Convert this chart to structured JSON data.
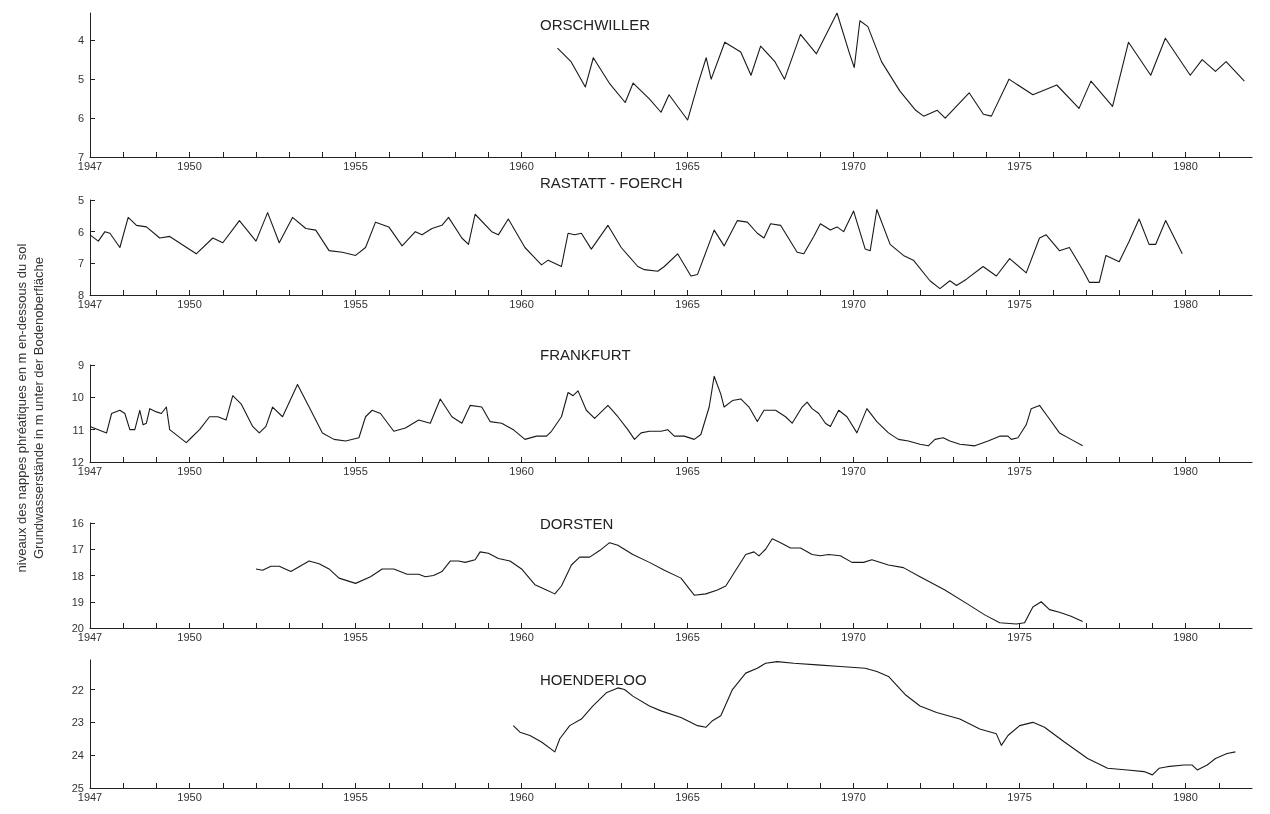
{
  "chart_data": [
    {
      "type": "line",
      "title": "ORSCHWILLER",
      "color": "#1a1a1a",
      "xlim": [
        1947,
        1982
      ],
      "ylim": [
        7,
        3.3
      ],
      "yticks": [
        4,
        5,
        6,
        7
      ],
      "xticks": [
        1947,
        {
          "value": 1948,
          "label": null
        },
        {
          "value": 1949,
          "label": null
        },
        1950,
        {
          "value": 1951,
          "label": null
        },
        {
          "value": 1952,
          "label": null
        },
        {
          "value": 1953,
          "label": null
        },
        {
          "value": 1954,
          "label": null
        },
        1955,
        {
          "value": 1956,
          "label": null
        },
        {
          "value": 1957,
          "label": null
        },
        {
          "value": 1958,
          "label": null
        },
        {
          "value": 1959,
          "label": null
        },
        1960,
        {
          "value": 1961,
          "label": null
        },
        {
          "value": 1962,
          "label": null
        },
        {
          "value": 1963,
          "label": null
        },
        {
          "value": 1964,
          "label": null
        },
        1965,
        {
          "value": 1966,
          "label": null
        },
        {
          "value": 1967,
          "label": null
        },
        {
          "value": 1968,
          "label": null
        },
        {
          "value": 1969,
          "label": null
        },
        1970,
        {
          "value": 1971,
          "label": null
        },
        {
          "value": 1972,
          "label": null
        },
        {
          "value": 1973,
          "label": null
        },
        {
          "value": 1974,
          "label": null
        },
        1975,
        {
          "value": 1976,
          "label": null
        },
        {
          "value": 1977,
          "label": null
        },
        {
          "value": 1978,
          "label": null
        },
        {
          "value": 1979,
          "label": null
        },
        1980,
        {
          "value": 1981,
          "label": null
        }
      ],
      "x": [
        1961.08,
        1961.49,
        1961.92,
        1962.16,
        1962.64,
        1963.12,
        1963.36,
        1963.84,
        1964.2,
        1964.44,
        1965.0,
        1965.32,
        1965.56,
        1965.71,
        1966.12,
        1966.6,
        1966.91,
        1967.2,
        1967.63,
        1967.92,
        1968.4,
        1968.88,
        1969.5,
        1969.88,
        1970.02,
        1970.19,
        1970.43,
        1970.84,
        1971.39,
        1971.87,
        1972.11,
        1972.52,
        1972.76,
        1973.48,
        1973.91,
        1974.15,
        1974.68,
        1975.4,
        1976.12,
        1976.79,
        1977.15,
        1977.8,
        1978.28,
        1978.95,
        1979.39,
        1980.14,
        1980.5,
        1980.9,
        1981.22,
        1981.77
      ],
      "values": [
        4.2,
        4.55,
        5.2,
        4.45,
        5.1,
        5.6,
        5.1,
        5.5,
        5.85,
        5.4,
        6.05,
        5.1,
        4.45,
        5.0,
        4.05,
        4.3,
        4.9,
        4.15,
        4.55,
        5.0,
        3.85,
        4.35,
        3.3,
        4.35,
        4.7,
        3.5,
        3.65,
        4.55,
        5.3,
        5.8,
        5.95,
        5.8,
        6.0,
        5.35,
        5.9,
        5.95,
        5.0,
        5.4,
        5.15,
        5.75,
        5.05,
        5.7,
        4.05,
        4.9,
        3.95,
        4.9,
        4.5,
        4.8,
        4.55,
        5.05
      ]
    },
    {
      "type": "line",
      "title": "RASTATT - FOERCH",
      "color": "#1a1a1a",
      "xlim": [
        1947,
        1982
      ],
      "ylim": [
        8,
        5
      ],
      "yticks": [
        5,
        6,
        7,
        8
      ],
      "xticks": [
        1947,
        {
          "value": 1948,
          "label": null
        },
        {
          "value": 1949,
          "label": null
        },
        1950,
        {
          "value": 1951,
          "label": null
        },
        {
          "value": 1952,
          "label": null
        },
        {
          "value": 1953,
          "label": null
        },
        {
          "value": 1954,
          "label": null
        },
        1955,
        {
          "value": 1956,
          "label": null
        },
        {
          "value": 1957,
          "label": null
        },
        {
          "value": 1958,
          "label": null
        },
        {
          "value": 1959,
          "label": null
        },
        1960,
        {
          "value": 1961,
          "label": null
        },
        {
          "value": 1962,
          "label": null
        },
        {
          "value": 1963,
          "label": null
        },
        {
          "value": 1964,
          "label": null
        },
        1965,
        {
          "value": 1966,
          "label": null
        },
        {
          "value": 1967,
          "label": null
        },
        {
          "value": 1968,
          "label": null
        },
        {
          "value": 1969,
          "label": null
        },
        1970,
        {
          "value": 1971,
          "label": null
        },
        {
          "value": 1972,
          "label": null
        },
        {
          "value": 1973,
          "label": null
        },
        {
          "value": 1974,
          "label": null
        },
        1975,
        {
          "value": 1976,
          "label": null
        },
        {
          "value": 1977,
          "label": null
        },
        {
          "value": 1978,
          "label": null
        },
        {
          "value": 1979,
          "label": null
        },
        1980,
        {
          "value": 1981,
          "label": null
        }
      ],
      "x": [
        1947.0,
        1947.25,
        1947.45,
        1947.6,
        1947.9,
        1948.15,
        1948.4,
        1948.7,
        1949.1,
        1949.4,
        1950.2,
        1950.7,
        1951.0,
        1951.5,
        1952.0,
        1952.35,
        1952.7,
        1953.1,
        1953.5,
        1953.8,
        1954.2,
        1954.6,
        1955.0,
        1955.3,
        1955.6,
        1956.0,
        1956.4,
        1956.8,
        1957.0,
        1957.3,
        1957.6,
        1957.8,
        1958.2,
        1958.4,
        1958.6,
        1959.1,
        1959.3,
        1959.6,
        1960.1,
        1960.6,
        1960.8,
        1961.2,
        1961.4,
        1961.6,
        1961.8,
        1962.1,
        1962.6,
        1963.0,
        1963.5,
        1963.7,
        1964.1,
        1964.3,
        1964.7,
        1965.1,
        1965.3,
        1965.8,
        1966.1,
        1966.5,
        1966.8,
        1967.1,
        1967.3,
        1967.5,
        1967.8,
        1968.3,
        1968.5,
        1968.8,
        1969.0,
        1969.3,
        1969.5,
        1969.7,
        1970.0,
        1970.35,
        1970.5,
        1970.7,
        1971.1,
        1971.5,
        1971.8,
        1972.3,
        1972.6,
        1972.9,
        1973.1,
        1973.4,
        1973.9,
        1974.3,
        1974.7,
        1975.2,
        1975.6,
        1975.8,
        1976.2,
        1976.5,
        1976.9,
        1977.1,
        1977.4,
        1977.6,
        1978.0,
        1978.3,
        1978.6,
        1978.9,
        1979.1,
        1979.4,
        1979.9
      ],
      "values": [
        6.1,
        6.3,
        6.0,
        6.05,
        6.5,
        5.55,
        5.8,
        5.85,
        6.2,
        6.15,
        6.7,
        6.2,
        6.35,
        5.65,
        6.3,
        5.4,
        6.35,
        5.55,
        5.9,
        5.95,
        6.6,
        6.65,
        6.75,
        6.5,
        5.7,
        5.85,
        6.45,
        6.0,
        6.1,
        5.9,
        5.8,
        5.55,
        6.2,
        6.4,
        5.45,
        6.0,
        6.1,
        5.6,
        6.5,
        7.05,
        6.9,
        7.1,
        6.05,
        6.1,
        6.05,
        6.55,
        5.8,
        6.5,
        7.1,
        7.2,
        7.25,
        7.1,
        6.7,
        7.4,
        7.35,
        5.95,
        6.45,
        5.65,
        5.7,
        6.05,
        6.2,
        5.75,
        5.8,
        6.65,
        6.7,
        6.15,
        5.75,
        5.95,
        5.85,
        6.0,
        5.35,
        6.55,
        6.6,
        5.3,
        6.4,
        6.75,
        6.9,
        7.55,
        7.8,
        7.55,
        7.7,
        7.5,
        7.1,
        7.4,
        6.85,
        7.3,
        6.2,
        6.1,
        6.6,
        6.5,
        7.2,
        7.6,
        7.6,
        6.75,
        6.95,
        6.3,
        5.6,
        6.4,
        6.4,
        5.65,
        6.7
      ]
    },
    {
      "type": "line",
      "title": "FRANKFURT",
      "ylabel": "niveaux des nappes phréatiques en m en-dessous du sol\nGrundwasserstände in m unter der Bodenoberfläche",
      "color": "#1a1a1a",
      "xlim": [
        1947,
        1982
      ],
      "ylim": [
        12,
        9
      ],
      "yticks": [
        9,
        10,
        11,
        12
      ],
      "xticks": [
        1947,
        {
          "value": 1948,
          "label": null
        },
        {
          "value": 1949,
          "label": null
        },
        1950,
        {
          "value": 1951,
          "label": null
        },
        {
          "value": 1952,
          "label": null
        },
        {
          "value": 1953,
          "label": null
        },
        {
          "value": 1954,
          "label": null
        },
        1955,
        {
          "value": 1956,
          "label": null
        },
        {
          "value": 1957,
          "label": null
        },
        {
          "value": 1958,
          "label": null
        },
        {
          "value": 1959,
          "label": null
        },
        1960,
        {
          "value": 1961,
          "label": null
        },
        {
          "value": 1962,
          "label": null
        },
        {
          "value": 1963,
          "label": null
        },
        {
          "value": 1964,
          "label": null
        },
        1965,
        {
          "value": 1966,
          "label": null
        },
        {
          "value": 1967,
          "label": null
        },
        {
          "value": 1968,
          "label": null
        },
        {
          "value": 1969,
          "label": null
        },
        1970,
        {
          "value": 1971,
          "label": null
        },
        {
          "value": 1972,
          "label": null
        },
        {
          "value": 1973,
          "label": null
        },
        {
          "value": 1974,
          "label": null
        },
        1975,
        {
          "value": 1976,
          "label": null
        },
        {
          "value": 1977,
          "label": null
        },
        {
          "value": 1978,
          "label": null
        },
        {
          "value": 1979,
          "label": null
        },
        1980,
        {
          "value": 1981,
          "label": null
        }
      ],
      "x": [
        1947.0,
        1947.5,
        1947.65,
        1947.9,
        1948.05,
        1948.2,
        1948.35,
        1948.5,
        1948.6,
        1948.7,
        1948.8,
        1949.0,
        1949.15,
        1949.3,
        1949.4,
        1949.65,
        1949.9,
        1950.05,
        1950.3,
        1950.6,
        1950.85,
        1951.1,
        1951.3,
        1951.55,
        1951.9,
        1952.1,
        1952.3,
        1952.5,
        1952.8,
        1953.25,
        1953.6,
        1954.0,
        1954.35,
        1954.7,
        1955.1,
        1955.3,
        1955.5,
        1955.75,
        1956.15,
        1956.5,
        1956.9,
        1957.25,
        1957.55,
        1957.9,
        1958.2,
        1958.45,
        1958.8,
        1959.05,
        1959.4,
        1959.75,
        1960.1,
        1960.45,
        1960.75,
        1960.9,
        1961.2,
        1961.4,
        1961.55,
        1961.7,
        1961.95,
        1962.2,
        1962.6,
        1962.9,
        1963.2,
        1963.4,
        1963.6,
        1963.85,
        1964.2,
        1964.4,
        1964.6,
        1964.9,
        1965.2,
        1965.4,
        1965.65,
        1965.8,
        1966.0,
        1966.1,
        1966.35,
        1966.6,
        1966.85,
        1967.1,
        1967.3,
        1967.65,
        1967.95,
        1968.15,
        1968.45,
        1968.6,
        1968.75,
        1968.95,
        1969.15,
        1969.3,
        1969.55,
        1969.8,
        1970.1,
        1970.4,
        1970.7,
        1971.05,
        1971.35,
        1971.65,
        1972.0,
        1972.25,
        1972.45,
        1972.7,
        1972.9,
        1973.2,
        1973.65,
        1974.05,
        1974.4,
        1974.65,
        1974.75,
        1974.95,
        1975.2,
        1975.35,
        1975.6,
        1975.85,
        1976.2,
        1976.55,
        1976.9
      ],
      "values": [
        10.9,
        11.1,
        10.5,
        10.4,
        10.5,
        11.0,
        11.0,
        10.4,
        10.85,
        10.8,
        10.35,
        10.45,
        10.5,
        10.3,
        11.0,
        11.2,
        11.4,
        11.25,
        11.0,
        10.6,
        10.6,
        10.7,
        9.95,
        10.2,
        10.9,
        11.1,
        10.9,
        10.3,
        10.6,
        9.6,
        10.3,
        11.1,
        11.3,
        11.35,
        11.25,
        10.6,
        10.4,
        10.5,
        11.05,
        10.95,
        10.7,
        10.8,
        10.05,
        10.6,
        10.8,
        10.25,
        10.3,
        10.75,
        10.8,
        11.0,
        11.3,
        11.2,
        11.2,
        11.05,
        10.6,
        9.85,
        9.95,
        9.8,
        10.4,
        10.65,
        10.25,
        10.6,
        11.0,
        11.3,
        11.1,
        11.05,
        11.05,
        11.0,
        11.2,
        11.2,
        11.3,
        11.15,
        10.3,
        9.35,
        9.9,
        10.3,
        10.1,
        10.05,
        10.3,
        10.75,
        10.4,
        10.4,
        10.6,
        10.8,
        10.3,
        10.15,
        10.35,
        10.5,
        10.8,
        10.9,
        10.4,
        10.6,
        11.1,
        10.35,
        10.75,
        11.1,
        11.3,
        11.35,
        11.45,
        11.5,
        11.3,
        11.25,
        11.35,
        11.45,
        11.5,
        11.35,
        11.2,
        11.2,
        11.3,
        11.25,
        10.85,
        10.35,
        10.25,
        10.6,
        11.1,
        11.3,
        11.5
      ]
    },
    {
      "type": "line",
      "title": "DORSTEN",
      "color": "#1a1a1a",
      "xlim": [
        1947,
        1982
      ],
      "ylim": [
        20,
        16
      ],
      "yticks": [
        16,
        17,
        18,
        19,
        20
      ],
      "xticks": [
        1947,
        {
          "value": 1948,
          "label": null
        },
        {
          "value": 1949,
          "label": null
        },
        1950,
        {
          "value": 1951,
          "label": null
        },
        {
          "value": 1952,
          "label": null
        },
        {
          "value": 1953,
          "label": null
        },
        {
          "value": 1954,
          "label": null
        },
        1955,
        {
          "value": 1956,
          "label": null
        },
        {
          "value": 1957,
          "label": null
        },
        {
          "value": 1958,
          "label": null
        },
        {
          "value": 1959,
          "label": null
        },
        1960,
        {
          "value": 1961,
          "label": null
        },
        {
          "value": 1962,
          "label": null
        },
        {
          "value": 1963,
          "label": null
        },
        {
          "value": 1964,
          "label": null
        },
        1965,
        {
          "value": 1966,
          "label": null
        },
        {
          "value": 1967,
          "label": null
        },
        {
          "value": 1968,
          "label": null
        },
        {
          "value": 1969,
          "label": null
        },
        1970,
        {
          "value": 1971,
          "label": null
        },
        {
          "value": 1972,
          "label": null
        },
        {
          "value": 1973,
          "label": null
        },
        {
          "value": 1974,
          "label": null
        },
        1975,
        {
          "value": 1976,
          "label": null
        },
        {
          "value": 1977,
          "label": null
        },
        {
          "value": 1978,
          "label": null
        },
        {
          "value": 1979,
          "label": null
        },
        1980,
        {
          "value": 1981,
          "label": null
        }
      ],
      "x": [
        1952.0,
        1952.2,
        1952.45,
        1952.7,
        1953.05,
        1953.6,
        1953.9,
        1954.2,
        1954.5,
        1955.0,
        1955.45,
        1955.8,
        1956.15,
        1956.55,
        1956.9,
        1957.1,
        1957.35,
        1957.6,
        1957.85,
        1958.1,
        1958.3,
        1958.6,
        1958.75,
        1959.0,
        1959.3,
        1959.65,
        1960.0,
        1960.4,
        1960.75,
        1961.0,
        1961.2,
        1961.5,
        1961.75,
        1962.05,
        1962.35,
        1962.65,
        1962.9,
        1963.35,
        1963.85,
        1964.3,
        1964.8,
        1965.2,
        1965.55,
        1965.9,
        1966.15,
        1966.45,
        1966.75,
        1967.0,
        1967.15,
        1967.35,
        1967.55,
        1967.8,
        1968.1,
        1968.4,
        1968.75,
        1969.0,
        1969.25,
        1969.6,
        1969.95,
        1970.3,
        1970.55,
        1971.05,
        1971.5,
        1972.0,
        1972.75,
        1973.45,
        1973.95,
        1974.4,
        1974.9,
        1975.15,
        1975.4,
        1975.65,
        1975.9,
        1976.2,
        1976.55,
        1976.9
      ],
      "values": [
        17.75,
        17.8,
        17.65,
        17.65,
        17.85,
        17.45,
        17.55,
        17.75,
        18.1,
        18.3,
        18.05,
        17.75,
        17.75,
        17.95,
        17.95,
        18.05,
        18.0,
        17.85,
        17.45,
        17.45,
        17.5,
        17.4,
        17.1,
        17.15,
        17.35,
        17.45,
        17.75,
        18.35,
        18.55,
        18.7,
        18.4,
        17.6,
        17.3,
        17.3,
        17.05,
        16.75,
        16.85,
        17.2,
        17.5,
        17.8,
        18.1,
        18.75,
        18.7,
        18.55,
        18.4,
        17.8,
        17.2,
        17.1,
        17.25,
        17.0,
        16.6,
        16.75,
        16.95,
        16.95,
        17.2,
        17.25,
        17.2,
        17.25,
        17.5,
        17.5,
        17.4,
        17.6,
        17.7,
        18.05,
        18.55,
        19.1,
        19.5,
        19.8,
        19.85,
        19.8,
        19.2,
        19.0,
        19.3,
        19.4,
        19.55,
        19.75
      ]
    },
    {
      "type": "line",
      "title": "HOENDERLOO",
      "color": "#1a1a1a",
      "xlim": [
        1947,
        1982
      ],
      "ylim": [
        25,
        21.1
      ],
      "yticks": [
        22,
        23,
        24,
        25
      ],
      "xticks": [
        1947,
        {
          "value": 1948,
          "label": null
        },
        {
          "value": 1949,
          "label": null
        },
        1950,
        {
          "value": 1951,
          "label": null
        },
        {
          "value": 1952,
          "label": null
        },
        {
          "value": 1953,
          "label": null
        },
        {
          "value": 1954,
          "label": null
        },
        1955,
        {
          "value": 1956,
          "label": null
        },
        {
          "value": 1957,
          "label": null
        },
        {
          "value": 1958,
          "label": null
        },
        {
          "value": 1959,
          "label": null
        },
        1960,
        {
          "value": 1961,
          "label": null
        },
        {
          "value": 1962,
          "label": null
        },
        {
          "value": 1963,
          "label": null
        },
        {
          "value": 1964,
          "label": null
        },
        1965,
        {
          "value": 1966,
          "label": null
        },
        {
          "value": 1967,
          "label": null
        },
        {
          "value": 1968,
          "label": null
        },
        {
          "value": 1969,
          "label": null
        },
        1970,
        {
          "value": 1971,
          "label": null
        },
        {
          "value": 1972,
          "label": null
        },
        {
          "value": 1973,
          "label": null
        },
        {
          "value": 1974,
          "label": null
        },
        1975,
        {
          "value": 1976,
          "label": null
        },
        {
          "value": 1977,
          "label": null
        },
        {
          "value": 1978,
          "label": null
        },
        {
          "value": 1979,
          "label": null
        },
        1980,
        {
          "value": 1981,
          "label": null
        }
      ],
      "x": [
        1959.75,
        1959.95,
        1960.25,
        1960.6,
        1961.0,
        1961.15,
        1961.45,
        1961.8,
        1962.15,
        1962.55,
        1962.9,
        1963.1,
        1963.35,
        1963.85,
        1964.2,
        1964.8,
        1965.3,
        1965.55,
        1965.75,
        1966.0,
        1966.35,
        1966.75,
        1967.1,
        1967.35,
        1967.7,
        1968.2,
        1968.9,
        1969.6,
        1970.35,
        1970.7,
        1971.05,
        1971.55,
        1972.0,
        1972.5,
        1973.2,
        1973.8,
        1974.3,
        1974.45,
        1974.65,
        1975.0,
        1975.4,
        1975.75,
        1976.35,
        1977.05,
        1977.65,
        1978.25,
        1978.75,
        1979.0,
        1979.2,
        1979.45,
        1979.95,
        1980.2,
        1980.35,
        1980.65,
        1980.9,
        1981.25,
        1981.5
      ],
      "values": [
        23.1,
        23.3,
        23.4,
        23.6,
        23.9,
        23.5,
        23.1,
        22.9,
        22.5,
        22.1,
        21.95,
        22.0,
        22.2,
        22.5,
        22.65,
        22.85,
        23.1,
        23.15,
        22.95,
        22.8,
        22.0,
        21.5,
        21.35,
        21.2,
        21.15,
        21.2,
        21.25,
        21.3,
        21.35,
        21.45,
        21.6,
        22.15,
        22.5,
        22.7,
        22.9,
        23.2,
        23.35,
        23.7,
        23.4,
        23.1,
        23.0,
        23.15,
        23.6,
        24.1,
        24.4,
        24.45,
        24.5,
        24.6,
        24.4,
        24.35,
        24.3,
        24.3,
        24.45,
        24.3,
        24.1,
        23.95,
        23.9
      ]
    }
  ]
}
